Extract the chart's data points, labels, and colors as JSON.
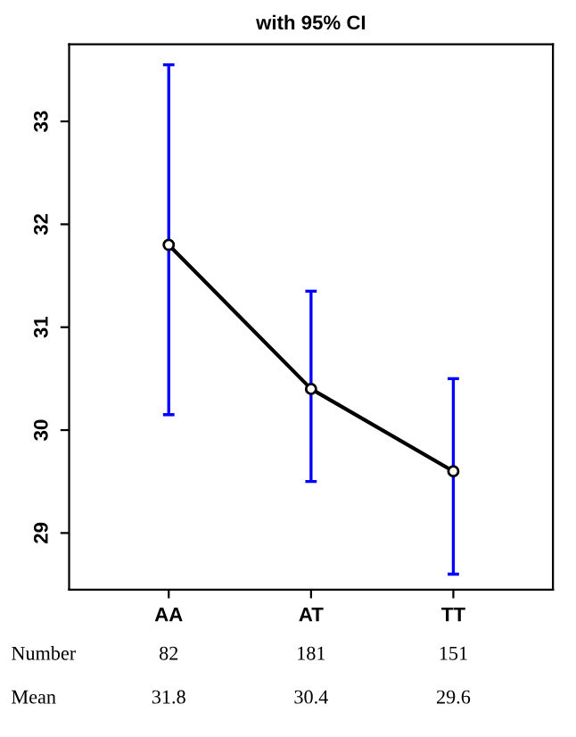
{
  "chart_data": {
    "type": "line",
    "title": "with 95% CI",
    "categories": [
      "AA",
      "AT",
      "TT"
    ],
    "series": [
      {
        "color": "#000000",
        "values": [
          31.8,
          30.4,
          29.6
        ],
        "errors": [
          [
            30.15,
            33.55
          ],
          [
            29.5,
            31.35
          ],
          [
            28.6,
            30.5
          ]
        ]
      }
    ],
    "color": "#0000ff",
    "ylim": [
      28.45,
      33.75
    ],
    "yticks": [
      29,
      30,
      31,
      32,
      33
    ],
    "marker": "circle",
    "line_style": "solid",
    "grid": false,
    "legend": false,
    "data_labels": true,
    "annotations": [
      "Number",
      "82",
      "181",
      "151",
      "Mean"
    ]
  }
}
